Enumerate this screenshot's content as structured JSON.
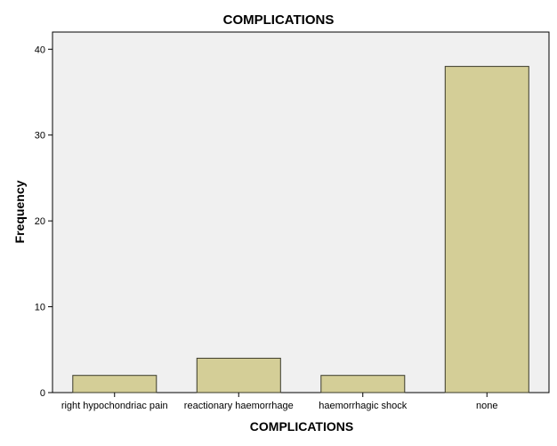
{
  "chart_data": {
    "type": "bar",
    "title": "COMPLICATIONS",
    "xlabel": "COMPLICATIONS",
    "ylabel": "Frequency",
    "categories": [
      "right hypochondriac pain",
      "reactionary haemorrhage",
      "haemorrhagic shock",
      "none"
    ],
    "values": [
      2,
      4,
      2,
      38
    ],
    "ylim": [
      0,
      42
    ],
    "yticks": [
      "0",
      "10",
      "20",
      "30",
      "40"
    ],
    "grid": false,
    "legend": "none",
    "colors": {
      "bar_fill": "#d4ce97",
      "bar_stroke": "#3a3a2a",
      "plot_background": "#f0f0f0",
      "axis": "#000000"
    }
  }
}
